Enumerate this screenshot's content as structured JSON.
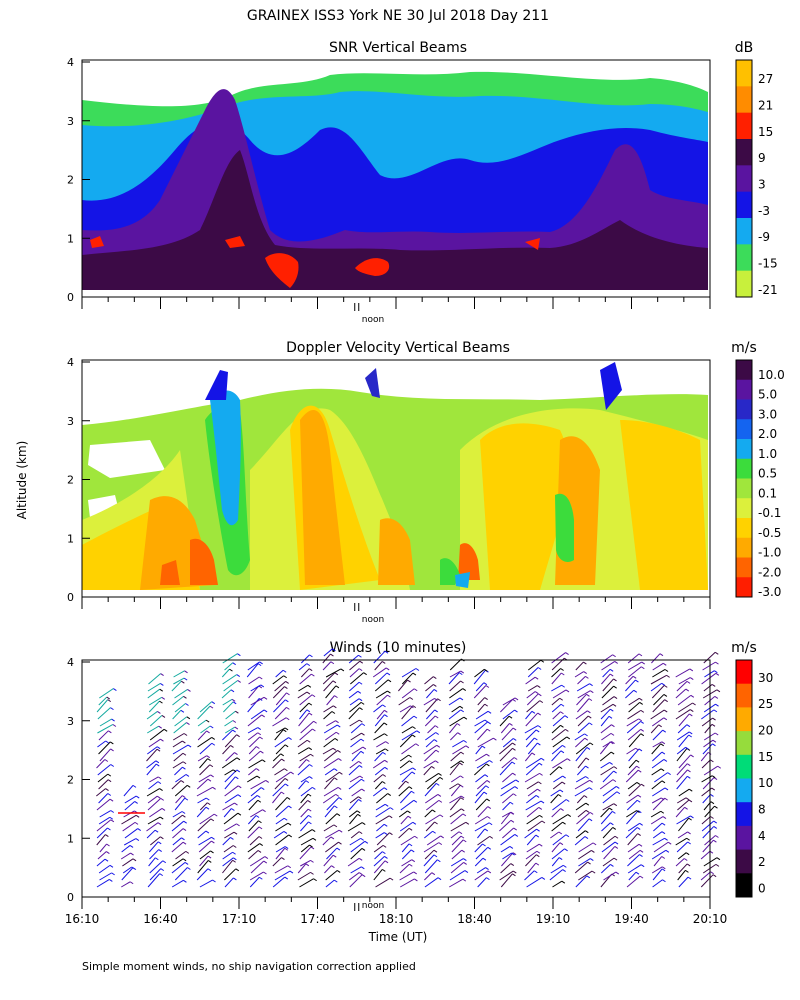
{
  "figure": {
    "title": "GRAINEX ISS3 York NE  30 Jul 2018 Day 211",
    "footnote": "Simple moment winds, no ship navigation correction applied",
    "shared_ylabel": "Altitude (km)",
    "shared_xlabel": "Time (UT)",
    "noon_label": "noon"
  },
  "chart_data": [
    {
      "type": "heatmap",
      "title": "SNR Vertical Beams",
      "unit": "dB",
      "ylim": [
        0,
        4
      ],
      "yticks": [
        "0",
        "1",
        "2",
        "3",
        "4"
      ],
      "colorbar": {
        "labels": [
          "27",
          "21",
          "15",
          "9",
          "3",
          "-3",
          "-9",
          "-15",
          "-21"
        ],
        "colors": [
          "#ffc000",
          "#ff8c00",
          "#ff2000",
          "#3c0a46",
          "#5a14a0",
          "#1414e6",
          "#14aaf0",
          "#3cdc5a",
          "#c8f03c"
        ]
      }
    },
    {
      "type": "heatmap",
      "title": "Doppler Velocity Vertical Beams",
      "unit": "m/s",
      "ylim": [
        0,
        4
      ],
      "yticks": [
        "0",
        "1",
        "2",
        "3",
        "4"
      ],
      "colorbar": {
        "labels": [
          "10.0",
          "5.0",
          "3.0",
          "2.0",
          "1.0",
          "0.5",
          "0.1",
          "-0.1",
          "-0.5",
          "-1.0",
          "-2.0",
          "-3.0"
        ],
        "colors": [
          "#3c0a46",
          "#5a14a0",
          "#2828c8",
          "#1464f0",
          "#14aaf0",
          "#3cdc3c",
          "#a0e63c",
          "#dcf03c",
          "#ffd200",
          "#ffaa00",
          "#ff6400",
          "#ff1e00"
        ]
      }
    },
    {
      "type": "scatter",
      "title": "Winds (10 minutes)",
      "unit": "m/s",
      "ylim": [
        0,
        4
      ],
      "yticks": [
        "0",
        "1",
        "2",
        "3",
        "4"
      ],
      "xlim": [
        "16:10",
        "20:10"
      ],
      "xticks": [
        "16:10",
        "16:40",
        "17:10",
        "17:40",
        "18:10",
        "18:40",
        "19:10",
        "19:40",
        "20:10"
      ],
      "colorbar": {
        "labels": [
          "30",
          "25",
          "20",
          "15",
          "10",
          "8",
          "4",
          "2",
          "0"
        ],
        "colors": [
          "#ff0000",
          "#ff6400",
          "#ffaa00",
          "#96dc3c",
          "#00dc78",
          "#14aaf0",
          "#1414e6",
          "#5a14a0",
          "#3c0a46",
          "#000000"
        ]
      }
    }
  ]
}
